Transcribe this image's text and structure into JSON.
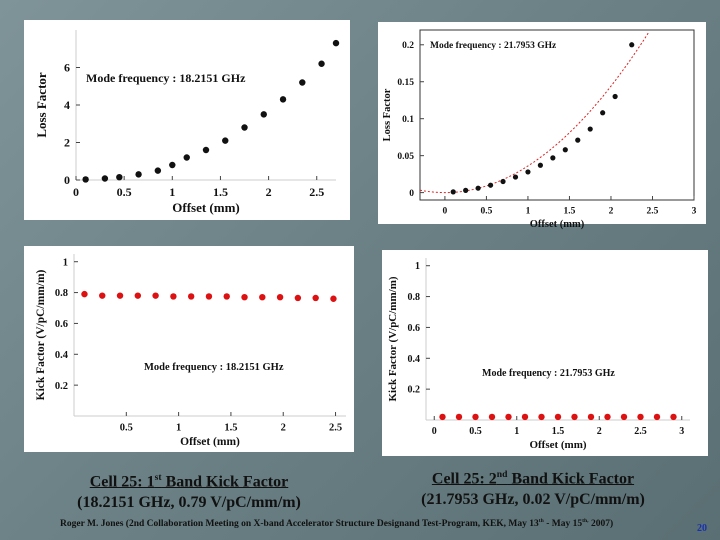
{
  "chart_data": [
    {
      "id": "loss-1st",
      "type": "scatter",
      "annotation": "Mode frequency : 18.2151 GHz",
      "xlabel": "Offset  (mm)",
      "ylabel": "Loss Factor",
      "xlim": [
        0,
        2.7
      ],
      "ylim": [
        0,
        8
      ],
      "xticks": [
        "0",
        "0.5",
        "1",
        "1.5",
        "2",
        "2.5"
      ],
      "yticks": [
        "0",
        "2",
        "4",
        "6"
      ],
      "fit_curve": false,
      "marker_color": "#111111",
      "x": [
        0.1,
        0.3,
        0.45,
        0.65,
        0.85,
        1.0,
        1.15,
        1.35,
        1.55,
        1.75,
        1.95,
        2.15,
        2.35,
        2.55,
        2.7
      ],
      "y": [
        0.03,
        0.08,
        0.15,
        0.3,
        0.5,
        0.8,
        1.2,
        1.6,
        2.1,
        2.8,
        3.5,
        4.3,
        5.2,
        6.2,
        7.3
      ]
    },
    {
      "id": "loss-2nd",
      "type": "scatter",
      "annotation": "Mode frequency : 21.7953 GHz",
      "xlabel": "Offset  (mm)",
      "ylabel": "Loss Factor",
      "xlim": [
        -0.3,
        3
      ],
      "ylim": [
        -0.01,
        0.22
      ],
      "xticks": [
        "0",
        "0.5",
        "1",
        "1.5",
        "2",
        "2.5",
        "3"
      ],
      "yticks": [
        "0",
        "0.05",
        "0.1",
        "0.15",
        "0.2"
      ],
      "fit_curve": true,
      "marker_color": "#111111",
      "x": [
        0.1,
        0.25,
        0.4,
        0.55,
        0.7,
        0.85,
        1.0,
        1.15,
        1.3,
        1.45,
        1.6,
        1.75,
        1.9,
        2.05,
        2.25
      ],
      "y": [
        0.001,
        0.003,
        0.006,
        0.01,
        0.015,
        0.021,
        0.028,
        0.037,
        0.047,
        0.058,
        0.071,
        0.086,
        0.108,
        0.13,
        0.2
      ]
    },
    {
      "id": "kick-1st",
      "type": "scatter",
      "annotation": "Mode frequency : 18.2151 GHz",
      "xlabel": "Offset  (mm)",
      "ylabel": "Kick Factor (V/pC/mm/m)",
      "xlim": [
        0,
        2.6
      ],
      "ylim": [
        0,
        1.05
      ],
      "xticks": [
        "0.5",
        "1",
        "1.5",
        "2",
        "2.5"
      ],
      "yticks": [
        "0.2",
        "0.4",
        "0.6",
        "0.8",
        "1"
      ],
      "fit_curve": false,
      "marker_color": "#dd1111",
      "x": [
        0.1,
        0.27,
        0.44,
        0.61,
        0.78,
        0.95,
        1.12,
        1.29,
        1.46,
        1.63,
        1.8,
        1.97,
        2.14,
        2.31,
        2.48
      ],
      "y": [
        0.79,
        0.78,
        0.78,
        0.78,
        0.78,
        0.775,
        0.775,
        0.775,
        0.775,
        0.77,
        0.77,
        0.77,
        0.765,
        0.765,
        0.76
      ]
    },
    {
      "id": "kick-2nd",
      "type": "scatter",
      "annotation": "Mode frequency : 21.7953 GHz",
      "xlabel": "Offset  (mm)",
      "ylabel": "Kick Factor (V/pC/mm/m)",
      "xlim": [
        -0.1,
        3.1
      ],
      "ylim": [
        0,
        1.05
      ],
      "xticks": [
        "0",
        "0.5",
        "1",
        "1.5",
        "2",
        "2.5",
        "3"
      ],
      "yticks": [
        "0.2",
        "0.4",
        "0.6",
        "0.8",
        "1"
      ],
      "fit_curve": false,
      "marker_color": "#dd1111",
      "x": [
        0.1,
        0.3,
        0.5,
        0.7,
        0.9,
        1.1,
        1.3,
        1.5,
        1.7,
        1.9,
        2.1,
        2.3,
        2.5,
        2.7,
        2.9
      ],
      "y": [
        0.02,
        0.02,
        0.02,
        0.02,
        0.02,
        0.02,
        0.02,
        0.02,
        0.02,
        0.02,
        0.02,
        0.02,
        0.02,
        0.02,
        0.02
      ]
    }
  ],
  "captions": {
    "left": {
      "title_pre": "Cell 25: 1",
      "title_sup": "st",
      "title_post": " Band Kick Factor",
      "subtitle": "(18.2151 GHz, 0.79 V/pC/mm/m)"
    },
    "right": {
      "title_pre": "Cell 25: 2",
      "title_sup": "nd",
      "title_post": " Band Kick Factor",
      "subtitle": "(21.7953 GHz, 0.02 V/pC/mm/m)"
    }
  },
  "footer": {
    "text_a": "Roger M. Jones (2nd Collaboration Meeting on X-band Accelerator Structure Designand Test-Program, KEK, May 13",
    "sup_a": "th",
    "text_b": " - May 15",
    "sup_b": "th,",
    "text_c": " 2007)"
  },
  "page_number": "20"
}
